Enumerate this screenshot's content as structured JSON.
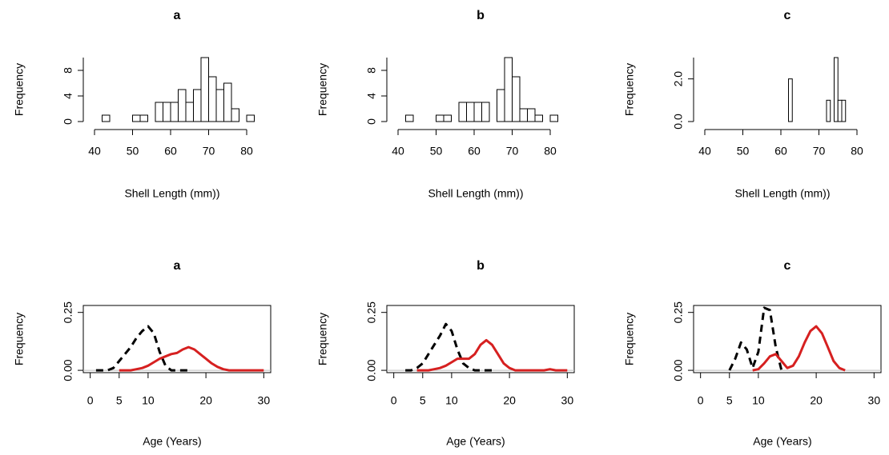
{
  "chart_data": [
    {
      "type": "histogram",
      "title": "a",
      "xlabel": "Shell Length (mm))",
      "ylabel": "Frequency",
      "bins": [
        42,
        44,
        46,
        48,
        50,
        52,
        54,
        56,
        58,
        60,
        62,
        64,
        66,
        68,
        70,
        72,
        74,
        76,
        78,
        80,
        82
      ],
      "values": [
        1,
        0,
        0,
        0,
        1,
        1,
        0,
        3,
        3,
        3,
        5,
        3,
        5,
        10,
        7,
        5,
        6,
        2,
        0,
        1
      ],
      "xlim": [
        40,
        80
      ],
      "xticks": [
        40,
        50,
        60,
        70,
        80
      ],
      "ylim": [
        0,
        10
      ],
      "yticks": [
        0,
        4,
        8
      ]
    },
    {
      "type": "histogram",
      "title": "b",
      "xlabel": "Shell Length (mm))",
      "ylabel": "Frequency",
      "bins": [
        42,
        44,
        46,
        48,
        50,
        52,
        54,
        56,
        58,
        60,
        62,
        64,
        66,
        68,
        70,
        72,
        74,
        76,
        78,
        80,
        82
      ],
      "values": [
        1,
        0,
        0,
        0,
        1,
        1,
        0,
        3,
        3,
        3,
        3,
        0,
        5,
        10,
        7,
        2,
        2,
        1,
        0,
        1
      ],
      "xlim": [
        40,
        80
      ],
      "xticks": [
        40,
        50,
        60,
        70,
        80
      ],
      "ylim": [
        0,
        10
      ],
      "yticks": [
        0,
        4,
        8
      ]
    },
    {
      "type": "histogram",
      "title": "c",
      "xlabel": "Shell Length (mm))",
      "ylabel": "Frequency",
      "bins": [
        62,
        63,
        64,
        65,
        66,
        67,
        68,
        69,
        70,
        71,
        72,
        73,
        74,
        75,
        76,
        77
      ],
      "values": [
        2,
        0,
        0,
        0,
        0,
        0,
        0,
        0,
        0,
        0,
        1,
        0,
        3,
        1,
        1
      ],
      "xlim": [
        40,
        80
      ],
      "xticks": [
        40,
        50,
        60,
        70,
        80
      ],
      "ylim": [
        0,
        3
      ],
      "yticks": [
        {
          "value": 0,
          "label": "0.0"
        },
        {
          "value": 2,
          "label": "2.0"
        }
      ]
    },
    {
      "type": "line",
      "title": "a",
      "xlabel": "Age (Years)",
      "ylabel": "Frequency",
      "x": [
        0,
        1,
        2,
        3,
        4,
        5,
        6,
        7,
        8,
        9,
        10,
        11,
        12,
        13,
        14,
        15,
        16,
        17,
        18,
        19,
        20,
        21,
        22,
        23,
        24,
        25,
        26,
        27,
        28,
        29,
        30
      ],
      "series": [
        {
          "color": "#000000",
          "dashed": true,
          "values": [
            null,
            0,
            0,
            0,
            0.01,
            0.04,
            0.07,
            0.1,
            0.14,
            0.17,
            0.19,
            0.16,
            0.08,
            0.02,
            0,
            0,
            0,
            0,
            null,
            null,
            null,
            null,
            null,
            null,
            null,
            null,
            null,
            null,
            null,
            null,
            null
          ]
        },
        {
          "color": "#d62020",
          "dashed": false,
          "values": [
            null,
            null,
            null,
            null,
            null,
            0,
            0,
            0,
            0.005,
            0.01,
            0.02,
            0.035,
            0.05,
            0.06,
            0.07,
            0.075,
            0.09,
            0.1,
            0.09,
            0.07,
            0.05,
            0.03,
            0.015,
            0.005,
            0,
            0,
            0,
            0,
            0,
            0,
            0
          ]
        }
      ],
      "xlim": [
        -1.2,
        31.2
      ],
      "xticks": [
        0,
        5,
        10,
        20,
        30
      ],
      "ylim": [
        -0.01,
        0.28
      ],
      "yticks": [
        {
          "value": 0,
          "label": "0.00"
        },
        {
          "value": 0.25,
          "label": "0.25"
        }
      ]
    },
    {
      "type": "line",
      "title": "b",
      "xlabel": "Age (Years)",
      "ylabel": "Frequency",
      "x": [
        0,
        1,
        2,
        3,
        4,
        5,
        6,
        7,
        8,
        9,
        10,
        11,
        12,
        13,
        14,
        15,
        16,
        17,
        18,
        19,
        20,
        21,
        22,
        23,
        24,
        25,
        26,
        27,
        28,
        29,
        30
      ],
      "series": [
        {
          "color": "#000000",
          "dashed": true,
          "values": [
            null,
            null,
            0,
            0,
            0.01,
            0.03,
            0.07,
            0.11,
            0.15,
            0.2,
            0.17,
            0.09,
            0.03,
            0.01,
            0,
            0,
            0,
            0,
            null,
            null,
            null,
            null,
            null,
            null,
            null,
            null,
            null,
            null,
            null,
            null,
            null
          ]
        },
        {
          "color": "#d62020",
          "dashed": false,
          "values": [
            null,
            null,
            null,
            null,
            0,
            0,
            0,
            0.005,
            0.01,
            0.02,
            0.035,
            0.05,
            0.05,
            0.05,
            0.07,
            0.11,
            0.13,
            0.11,
            0.07,
            0.03,
            0.01,
            0,
            0,
            0,
            0,
            0,
            0,
            0.005,
            0,
            0,
            0
          ]
        }
      ],
      "xlim": [
        -1.2,
        31.2
      ],
      "xticks": [
        0,
        5,
        10,
        20,
        30
      ],
      "ylim": [
        -0.01,
        0.28
      ],
      "yticks": [
        {
          "value": 0,
          "label": "0.00"
        },
        {
          "value": 0.25,
          "label": "0.25"
        }
      ]
    },
    {
      "type": "line",
      "title": "c",
      "xlabel": "Age (Years)",
      "ylabel": "Frequency",
      "x": [
        0,
        1,
        2,
        3,
        4,
        5,
        6,
        7,
        8,
        9,
        10,
        11,
        12,
        13,
        14,
        15,
        16,
        17,
        18,
        19,
        20,
        21,
        22,
        23,
        24,
        25,
        26,
        27,
        28,
        29,
        30
      ],
      "series": [
        {
          "color": "#000000",
          "dashed": true,
          "values": [
            null,
            null,
            null,
            null,
            null,
            0,
            0.05,
            0.12,
            0.09,
            0.01,
            0.08,
            0.27,
            0.26,
            0.1,
            0,
            null,
            null,
            null,
            null,
            null,
            null,
            null,
            null,
            null,
            null,
            null,
            null,
            null,
            null,
            null,
            null
          ]
        },
        {
          "color": "#d62020",
          "dashed": false,
          "values": [
            null,
            null,
            null,
            null,
            null,
            null,
            null,
            null,
            null,
            0,
            0.005,
            0.03,
            0.06,
            0.07,
            0.04,
            0.01,
            0.02,
            0.06,
            0.12,
            0.17,
            0.19,
            0.16,
            0.1,
            0.04,
            0.01,
            0,
            null,
            null,
            null,
            null,
            null
          ]
        }
      ],
      "xlim": [
        -1.2,
        31.2
      ],
      "xticks": [
        0,
        5,
        10,
        20,
        30
      ],
      "ylim": [
        -0.01,
        0.28
      ],
      "yticks": [
        {
          "value": 0,
          "label": "0.00"
        },
        {
          "value": 0.25,
          "label": "0.25"
        }
      ]
    }
  ]
}
